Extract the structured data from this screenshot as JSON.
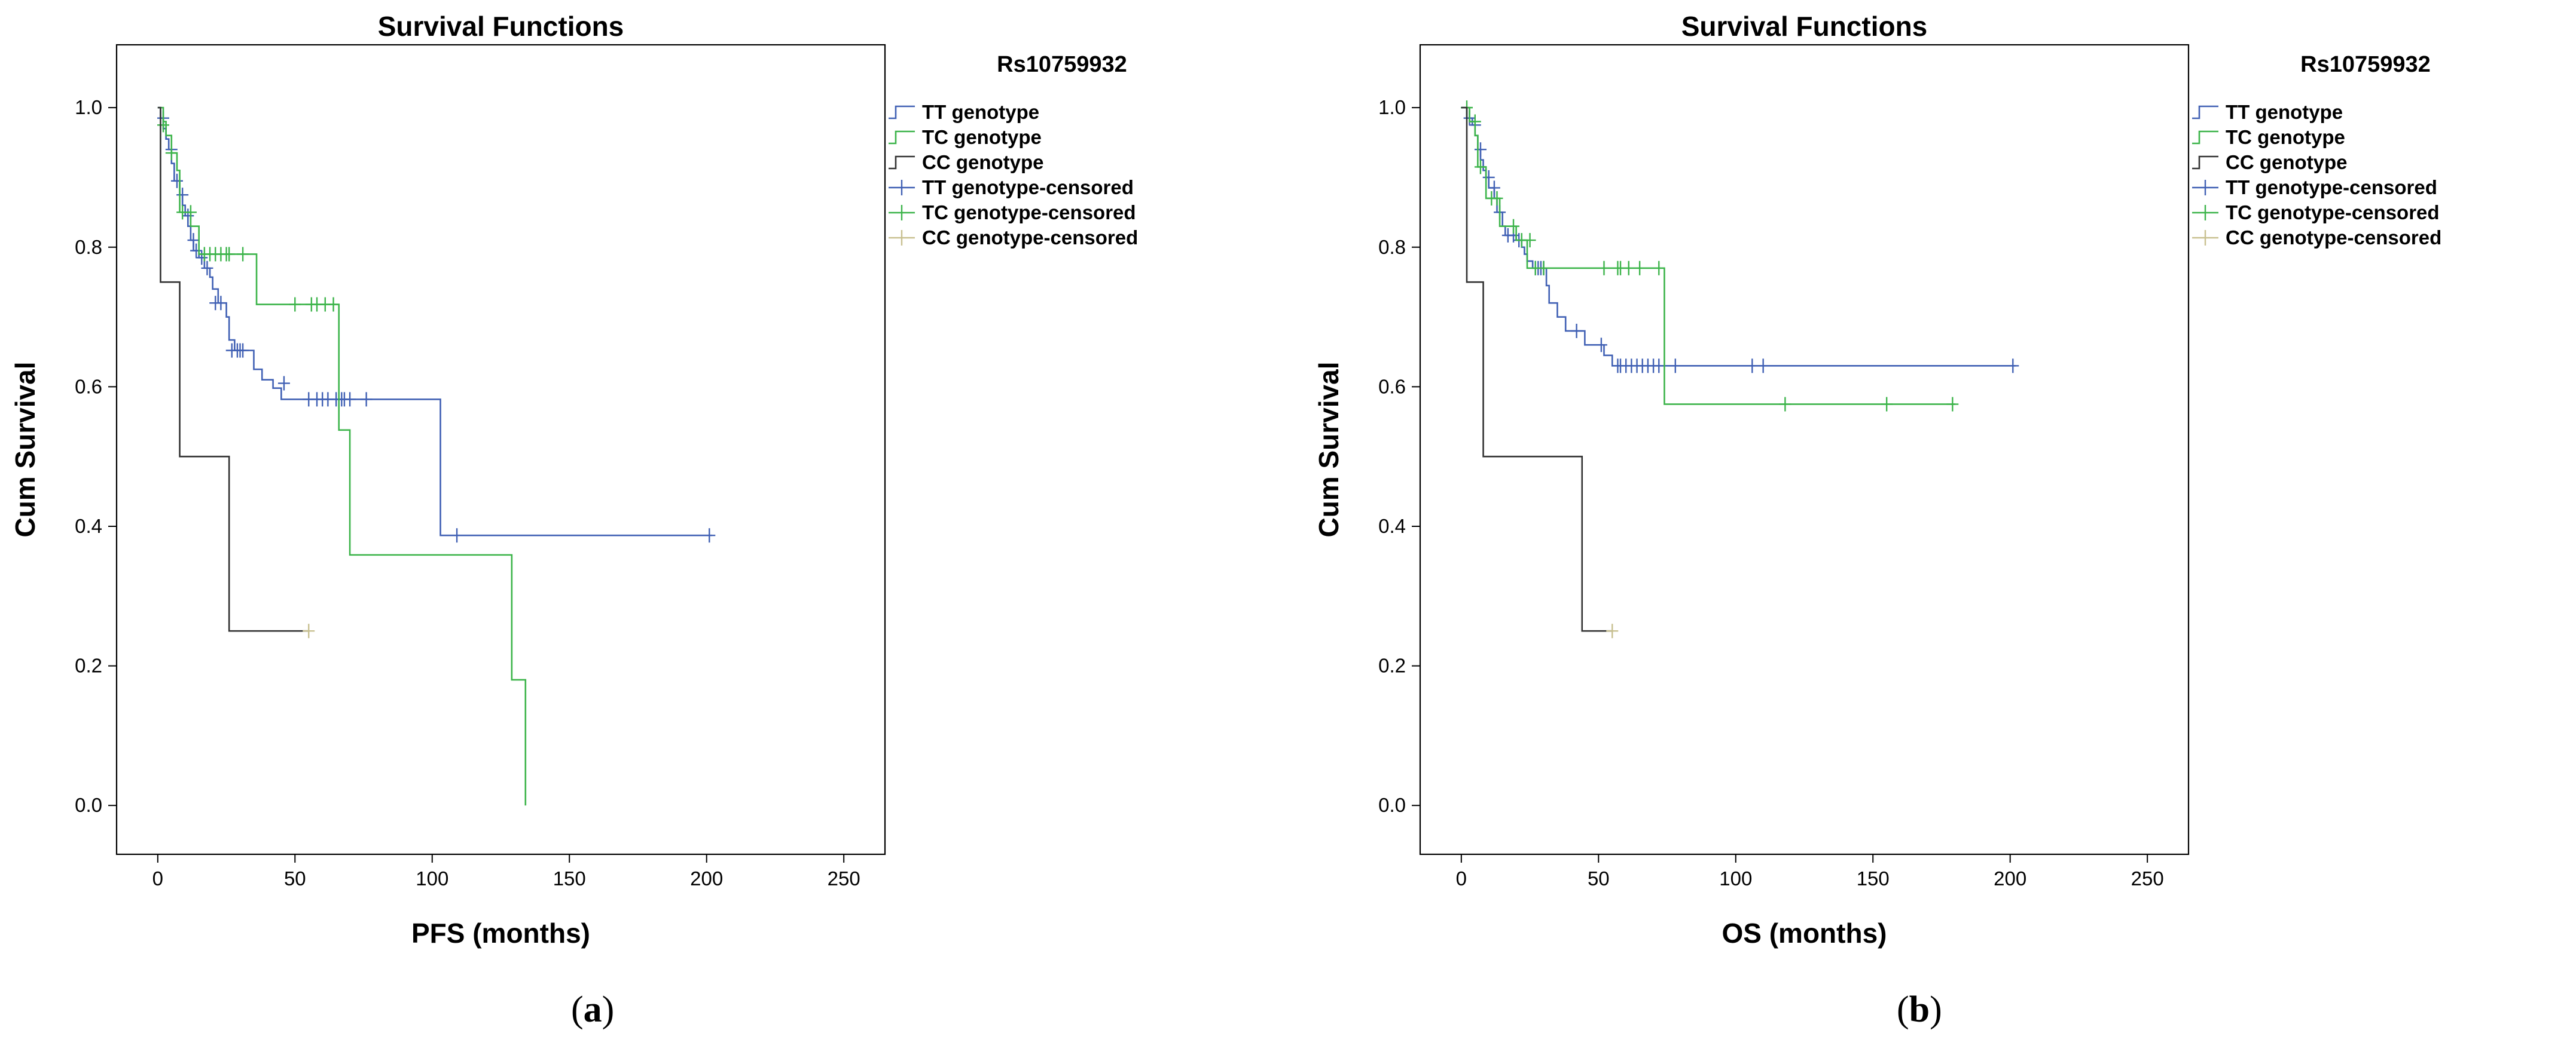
{
  "chart_data": [
    {
      "type": "line",
      "subtype": "kaplan-meier",
      "panel": "a",
      "title": "Survival Functions",
      "xlabel": "PFS (months)",
      "ylabel": "Cum Survival",
      "xlim": [
        -15,
        265
      ],
      "ylim": [
        -0.07,
        1.09
      ],
      "xticks": [
        0,
        50,
        100,
        150,
        200,
        250
      ],
      "yticks": [
        0.0,
        0.2,
        0.4,
        0.6,
        0.8,
        1.0
      ],
      "ytick_labels": [
        "0.0",
        "0.2",
        "0.4",
        "0.6",
        "0.8",
        "1.0"
      ],
      "legend_title": "Rs10759932",
      "legend": [
        "TT genotype",
        "TC genotype",
        "CC genotype",
        "TT genotype-censored",
        "TC genotype-censored",
        "CC genotype-censored"
      ],
      "series": [
        {
          "name": "TT genotype",
          "color": "#4060b4",
          "steps": [
            [
              0,
              1.0
            ],
            [
              1,
              0.985
            ],
            [
              2,
              0.97
            ],
            [
              3,
              0.955
            ],
            [
              4,
              0.94
            ],
            [
              5,
              0.92
            ],
            [
              6,
              0.895
            ],
            [
              8,
              0.875
            ],
            [
              9,
              0.86
            ],
            [
              10,
              0.845
            ],
            [
              11,
              0.83
            ],
            [
              12,
              0.81
            ],
            [
              13,
              0.795
            ],
            [
              15,
              0.785
            ],
            [
              17,
              0.77
            ],
            [
              19,
              0.757
            ],
            [
              20,
              0.74
            ],
            [
              22,
              0.72
            ],
            [
              25,
              0.7
            ],
            [
              26,
              0.667
            ],
            [
              28,
              0.652
            ],
            [
              35,
              0.625
            ],
            [
              38,
              0.61
            ],
            [
              42,
              0.598
            ],
            [
              45,
              0.582
            ],
            [
              103,
              0.387
            ],
            [
              202,
              0.387
            ]
          ],
          "censored": [
            [
              2,
              0.985
            ],
            [
              5,
              0.94
            ],
            [
              7,
              0.895
            ],
            [
              9,
              0.875
            ],
            [
              11,
              0.845
            ],
            [
              13,
              0.81
            ],
            [
              14,
              0.795
            ],
            [
              16,
              0.785
            ],
            [
              18,
              0.77
            ],
            [
              21,
              0.72
            ],
            [
              23,
              0.72
            ],
            [
              27,
              0.652
            ],
            [
              29,
              0.652
            ],
            [
              30,
              0.652
            ],
            [
              31,
              0.652
            ],
            [
              46,
              0.605
            ],
            [
              55,
              0.582
            ],
            [
              58,
              0.582
            ],
            [
              60,
              0.582
            ],
            [
              62,
              0.582
            ],
            [
              65,
              0.582
            ],
            [
              67,
              0.582
            ],
            [
              68,
              0.582
            ],
            [
              70,
              0.582
            ],
            [
              76,
              0.582
            ],
            [
              109,
              0.387
            ],
            [
              201,
              0.387
            ]
          ]
        },
        {
          "name": "TC genotype",
          "color": "#3cb44a",
          "steps": [
            [
              0,
              1.0
            ],
            [
              2,
              0.98
            ],
            [
              3,
              0.96
            ],
            [
              5,
              0.935
            ],
            [
              7,
              0.91
            ],
            [
              8,
              0.85
            ],
            [
              12,
              0.83
            ],
            [
              15,
              0.79
            ],
            [
              36,
              0.718
            ],
            [
              66,
              0.538
            ],
            [
              70,
              0.359
            ],
            [
              129,
              0.18
            ],
            [
              134,
              0.0
            ]
          ],
          "censored": [
            [
              2,
              0.975
            ],
            [
              5,
              0.935
            ],
            [
              9,
              0.85
            ],
            [
              12,
              0.85
            ],
            [
              17,
              0.79
            ],
            [
              19,
              0.79
            ],
            [
              21,
              0.79
            ],
            [
              23,
              0.79
            ],
            [
              25,
              0.79
            ],
            [
              26,
              0.79
            ],
            [
              31,
              0.79
            ],
            [
              50,
              0.718
            ],
            [
              56,
              0.718
            ],
            [
              58,
              0.718
            ],
            [
              61,
              0.718
            ],
            [
              64,
              0.718
            ]
          ]
        },
        {
          "name": "CC genotype",
          "color": "#333333",
          "steps": [
            [
              0,
              1.0
            ],
            [
              1,
              0.75
            ],
            [
              8,
              0.5
            ],
            [
              26,
              0.25
            ],
            [
              55,
              0.25
            ]
          ],
          "censored": []
        },
        {
          "name": "CC genotype-censored",
          "color": "#c8c090",
          "steps": [],
          "censored": [
            [
              55,
              0.25
            ]
          ]
        }
      ]
    },
    {
      "type": "line",
      "subtype": "kaplan-meier",
      "panel": "b",
      "title": "Survival Functions",
      "xlabel": "OS (months)",
      "ylabel": "Cum Survival",
      "xlim": [
        -15,
        265
      ],
      "ylim": [
        -0.07,
        1.09
      ],
      "xticks": [
        0,
        50,
        100,
        150,
        200,
        250
      ],
      "yticks": [
        0.0,
        0.2,
        0.4,
        0.6,
        0.8,
        1.0
      ],
      "ytick_labels": [
        "0.0",
        "0.2",
        "0.4",
        "0.6",
        "0.8",
        "1.0"
      ],
      "legend_title": "Rs10759932",
      "legend": [
        "TT genotype",
        "TC genotype",
        "CC genotype",
        "TT genotype-censored",
        "TC genotype-censored",
        "CC genotype-censored"
      ],
      "series": [
        {
          "name": "TT genotype",
          "color": "#4060b4",
          "steps": [
            [
              0,
              1.0
            ],
            [
              2,
              0.985
            ],
            [
              4,
              0.975
            ],
            [
              5,
              0.96
            ],
            [
              6,
              0.94
            ],
            [
              7,
              0.925
            ],
            [
              8,
              0.91
            ],
            [
              9,
              0.9
            ],
            [
              10,
              0.885
            ],
            [
              12,
              0.87
            ],
            [
              13,
              0.85
            ],
            [
              15,
              0.83
            ],
            [
              16,
              0.817
            ],
            [
              20,
              0.81
            ],
            [
              22,
              0.8
            ],
            [
              23,
              0.79
            ],
            [
              24,
              0.78
            ],
            [
              26,
              0.77
            ],
            [
              31,
              0.745
            ],
            [
              32,
              0.72
            ],
            [
              35,
              0.7
            ],
            [
              38,
              0.68
            ],
            [
              45,
              0.66
            ],
            [
              52,
              0.645
            ],
            [
              55,
              0.63
            ],
            [
              202,
              0.63
            ]
          ],
          "censored": [
            [
              3,
              0.985
            ],
            [
              5,
              0.975
            ],
            [
              7,
              0.94
            ],
            [
              10,
              0.9
            ],
            [
              12,
              0.885
            ],
            [
              14,
              0.85
            ],
            [
              17,
              0.817
            ],
            [
              19,
              0.817
            ],
            [
              21,
              0.81
            ],
            [
              27,
              0.77
            ],
            [
              28,
              0.77
            ],
            [
              29,
              0.77
            ],
            [
              30,
              0.77
            ],
            [
              42,
              0.68
            ],
            [
              51,
              0.66
            ],
            [
              57,
              0.63
            ],
            [
              58,
              0.63
            ],
            [
              60,
              0.63
            ],
            [
              62,
              0.63
            ],
            [
              64,
              0.63
            ],
            [
              66,
              0.63
            ],
            [
              68,
              0.63
            ],
            [
              70,
              0.63
            ],
            [
              72,
              0.63
            ],
            [
              78,
              0.63
            ],
            [
              106,
              0.63
            ],
            [
              110,
              0.63
            ],
            [
              201,
              0.63
            ]
          ]
        },
        {
          "name": "TC genotype",
          "color": "#3cb44a",
          "steps": [
            [
              0,
              1.0
            ],
            [
              3,
              0.98
            ],
            [
              5,
              0.96
            ],
            [
              6,
              0.915
            ],
            [
              9,
              0.87
            ],
            [
              14,
              0.83
            ],
            [
              20,
              0.81
            ],
            [
              24,
              0.77
            ],
            [
              74,
              0.575
            ],
            [
              180,
              0.575
            ]
          ],
          "censored": [
            [
              2,
              1.0
            ],
            [
              5,
              0.98
            ],
            [
              7,
              0.915
            ],
            [
              11,
              0.87
            ],
            [
              13,
              0.87
            ],
            [
              19,
              0.83
            ],
            [
              22,
              0.81
            ],
            [
              25,
              0.81
            ],
            [
              27,
              0.77
            ],
            [
              30,
              0.77
            ],
            [
              52,
              0.77
            ],
            [
              57,
              0.77
            ],
            [
              58,
              0.77
            ],
            [
              61,
              0.77
            ],
            [
              65,
              0.77
            ],
            [
              72,
              0.77
            ],
            [
              118,
              0.575
            ],
            [
              155,
              0.575
            ],
            [
              179,
              0.575
            ]
          ]
        },
        {
          "name": "CC genotype",
          "color": "#333333",
          "steps": [
            [
              0,
              1.0
            ],
            [
              2,
              0.75
            ],
            [
              8,
              0.5
            ],
            [
              44,
              0.25
            ],
            [
              55,
              0.25
            ]
          ],
          "censored": []
        },
        {
          "name": "CC genotype-censored",
          "color": "#c8c090",
          "steps": [],
          "censored": [
            [
              55,
              0.25
            ]
          ]
        }
      ]
    }
  ],
  "legend_colors": [
    "#4060b4",
    "#3cb44a",
    "#333333",
    "#4060b4",
    "#3cb44a",
    "#c8c090"
  ],
  "captions": {
    "a": {
      "open": "(",
      "letter": "a",
      "close": ")"
    },
    "b": {
      "open": "(",
      "letter": "b",
      "close": ")"
    }
  }
}
